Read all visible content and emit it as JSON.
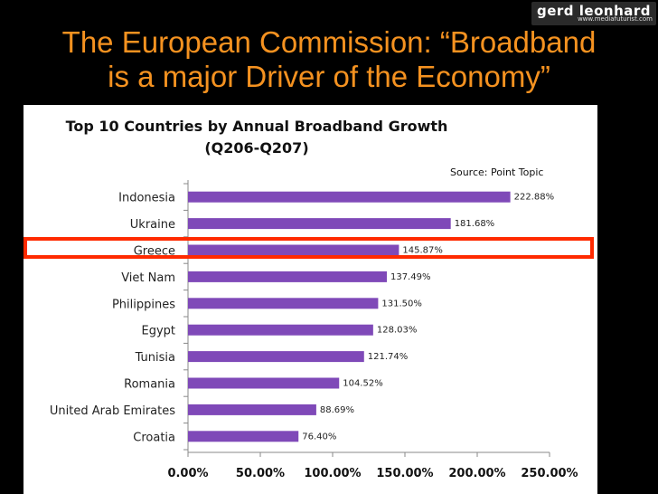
{
  "header": {
    "logo_text": "gerd leonhard",
    "logo_url": "www.mediafuturist.com",
    "title_line1": "The European Commission: “Broadband",
    "title_line2": "is a major Driver of the Economy”"
  },
  "chart_data": {
    "type": "bar",
    "orientation": "horizontal",
    "title_line1": "Top 10 Countries by Annual Broadband Growth",
    "title_line2": "(Q206-Q207)",
    "source": "Source: Point Topic",
    "categories": [
      "Indonesia",
      "Ukraine",
      "Greece",
      "Viet Nam",
      "Philippines",
      "Egypt",
      "Tunisia",
      "Romania",
      "United Arab Emirates",
      "Croatia"
    ],
    "values": [
      222.88,
      181.68,
      145.87,
      137.49,
      131.5,
      128.03,
      121.74,
      104.52,
      88.69,
      76.4
    ],
    "value_labels": [
      "222.88%",
      "181.68%",
      "145.87%",
      "137.49%",
      "131.50%",
      "128.03%",
      "121.74%",
      "104.52%",
      "88.69%",
      "76.40%"
    ],
    "xlim": [
      0,
      250
    ],
    "xticks": [
      0,
      50,
      100,
      150,
      200,
      250
    ],
    "xtick_labels": [
      "0.00%",
      "50.00%",
      "100.00%",
      "150.00%",
      "200.00%",
      "250.00%"
    ],
    "bar_color": "#7f49b8",
    "highlighted_category": "Greece",
    "highlight_color": "#ff2a00"
  }
}
